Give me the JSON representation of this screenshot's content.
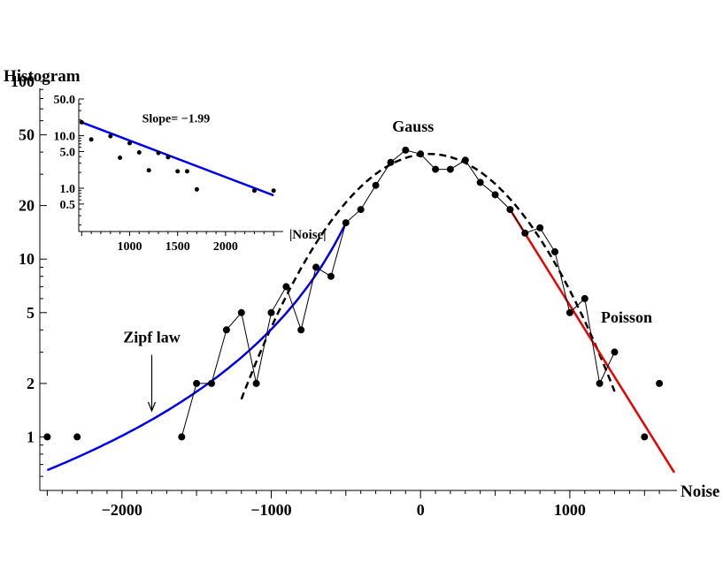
{
  "chart_data": [
    {
      "type": "scatter",
      "title": "",
      "xlabel": "Noise",
      "ylabel": "Histogram",
      "xlim": [
        -2550,
        1700
      ],
      "ylim": [
        0.5,
        100
      ],
      "yscale": "log",
      "x_ticks": [
        {
          "value": -2000,
          "label": "−2000"
        },
        {
          "value": -1000,
          "label": "−1000"
        },
        {
          "value": 0,
          "label": "0"
        },
        {
          "value": 1000,
          "label": "1000"
        }
      ],
      "y_ticks": [
        {
          "value": 1,
          "label": "1"
        },
        {
          "value": 2,
          "label": "2"
        },
        {
          "value": 5,
          "label": "5"
        },
        {
          "value": 10,
          "label": "10"
        },
        {
          "value": 20,
          "label": "20"
        },
        {
          "value": 50,
          "label": "50"
        },
        {
          "value": 100,
          "label": "100"
        }
      ],
      "series": [
        {
          "kind": "data-points",
          "color": "#000000",
          "points": [
            [
              -2500,
              1
            ],
            [
              -2300,
              1
            ],
            [
              -1600,
              1
            ],
            [
              -1500,
              2
            ],
            [
              -1400,
              2
            ],
            [
              -1300,
              4
            ],
            [
              -1200,
              5
            ],
            [
              -1100,
              2
            ],
            [
              -1000,
              5
            ],
            [
              -900,
              7
            ],
            [
              -800,
              4
            ],
            [
              -700,
              9
            ],
            [
              -600,
              8
            ],
            [
              -500,
              16
            ],
            [
              -400,
              19
            ],
            [
              -300,
              26
            ],
            [
              -200,
              35
            ],
            [
              -100,
              41
            ],
            [
              0,
              39
            ],
            [
              100,
              32
            ],
            [
              200,
              32
            ],
            [
              300,
              36
            ],
            [
              400,
              27
            ],
            [
              500,
              23
            ],
            [
              600,
              19
            ],
            [
              700,
              14
            ],
            [
              800,
              15
            ],
            [
              900,
              11
            ],
            [
              1000,
              5
            ],
            [
              1100,
              6
            ],
            [
              1200,
              2
            ],
            [
              1300,
              3
            ],
            [
              1500,
              1
            ],
            [
              1600,
              2
            ]
          ],
          "connected_range": [
            -1600,
            1300
          ]
        },
        {
          "kind": "curve",
          "name": "Gauss",
          "style": "dashed",
          "color": "#000000",
          "mu": 60,
          "sigma": 500,
          "peak": 39
        },
        {
          "kind": "curve",
          "name": "Zipf law",
          "color": "#0000ee",
          "form": "1/|x|^1.99",
          "x_range": [
            -2500,
            -500
          ],
          "y_at_minus_500": 16
        },
        {
          "kind": "curve",
          "name": "Poisson",
          "color": "#ee0000",
          "form": "exponential",
          "points": [
            [
              600,
              19
            ],
            [
              1700,
              0.63
            ]
          ]
        }
      ],
      "annotations": [
        {
          "text": "Gauss",
          "x": -50,
          "y": 52
        },
        {
          "text": "Zipf law",
          "x": -1800,
          "y": 3.4,
          "arrow_to": [
            -1800,
            1.4
          ]
        },
        {
          "text": "Poisson",
          "x": 1380,
          "y": 4.4
        }
      ]
    },
    {
      "type": "scatter",
      "title": "",
      "xlabel": "|Noise|",
      "ylabel": "",
      "xlim": [
        470,
        2600
      ],
      "ylim": [
        0.15,
        50
      ],
      "yscale": "log",
      "x_ticks": [
        {
          "value": 1000,
          "label": "1000"
        },
        {
          "value": 1500,
          "label": "1500"
        },
        {
          "value": 2000,
          "label": "2000"
        }
      ],
      "y_ticks": [
        {
          "value": 0.5,
          "label": "0.5"
        },
        {
          "value": 1,
          "label": "1.0"
        },
        {
          "value": 5,
          "label": "5.0"
        },
        {
          "value": 10,
          "label": "10.0"
        },
        {
          "value": 50,
          "label": "50.0"
        }
      ],
      "series": [
        {
          "kind": "data-points",
          "color": "#000000",
          "points": [
            [
              500,
              18
            ],
            [
              600,
              8.5
            ],
            [
              800,
              9.8
            ],
            [
              900,
              3.8
            ],
            [
              1000,
              7.2
            ],
            [
              1100,
              4.8
            ],
            [
              1200,
              2.2
            ],
            [
              1300,
              4.7
            ],
            [
              1400,
              3.9
            ],
            [
              1500,
              2.1
            ],
            [
              1600,
              2.1
            ],
            [
              1700,
              0.95
            ],
            [
              2300,
              0.9
            ],
            [
              2500,
              0.9
            ]
          ]
        },
        {
          "kind": "fit-line",
          "color": "#0000ee",
          "slope": -1.99,
          "points": [
            [
              500,
              18
            ],
            [
              2500,
              0.73
            ]
          ]
        }
      ],
      "annotations": [
        {
          "text": "Slope= −1.99",
          "x": 1130,
          "y": 18
        }
      ]
    }
  ]
}
